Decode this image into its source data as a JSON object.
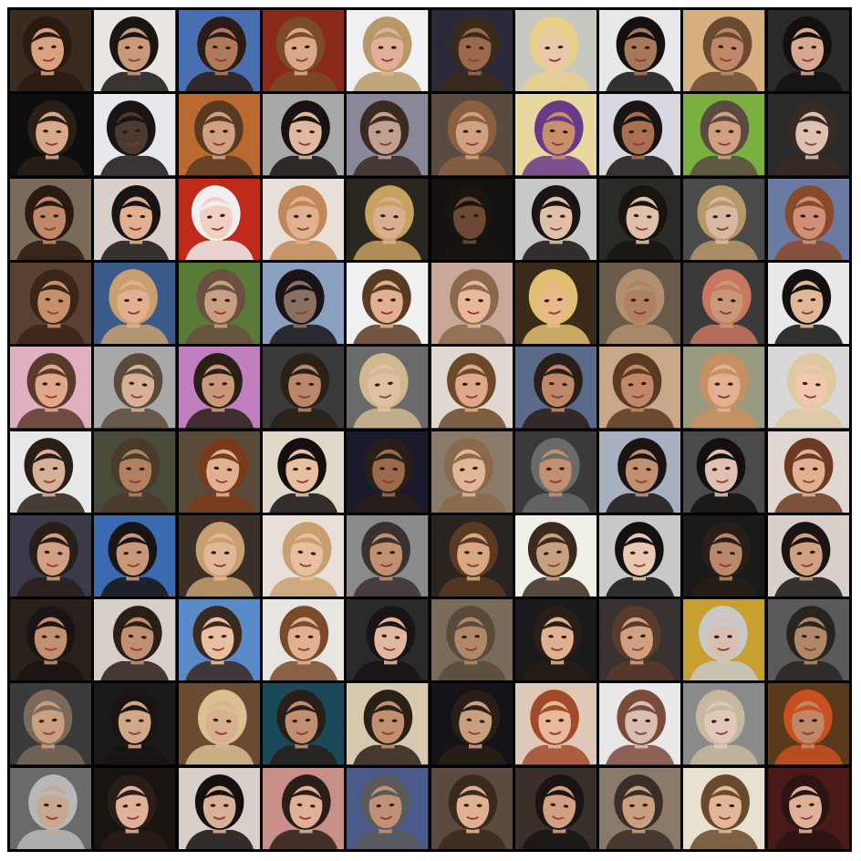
{
  "grid": {
    "rows": 10,
    "cols": 10,
    "frame_color": "#000000",
    "page_color": "#ffffff",
    "tiles": [
      {
        "bg": "#3a2a20",
        "skin": "#d9a27e",
        "hair": "#2a1a12"
      },
      {
        "bg": "#eae6e2",
        "skin": "#c99a7a",
        "hair": "#1a1412"
      },
      {
        "bg": "#4a6fb0",
        "skin": "#b07a5a",
        "hair": "#2a1c16"
      },
      {
        "bg": "#8a2a1a",
        "skin": "#d8a888",
        "hair": "#7a4a2a"
      },
      {
        "bg": "#f0f0f2",
        "skin": "#e0b098",
        "hair": "#b89868"
      },
      {
        "bg": "#2a2a3a",
        "skin": "#9a6a4a",
        "hair": "#3a2a1a"
      },
      {
        "bg": "#c8c8c0",
        "skin": "#e8c8a8",
        "hair": "#e8d088"
      },
      {
        "bg": "#e8e8ea",
        "skin": "#a8785a",
        "hair": "#141010"
      },
      {
        "bg": "#d8b080",
        "skin": "#c08868",
        "hair": "#6a4a30"
      },
      {
        "bg": "#2a2a2a",
        "skin": "#d8a890",
        "hair": "#141010"
      },
      {
        "bg": "#0e0e0e",
        "skin": "#d8a888",
        "hair": "#2a1e18"
      },
      {
        "bg": "#e8e8ec",
        "skin": "#4a3a30",
        "hair": "#1a1414"
      },
      {
        "bg": "#b86a30",
        "skin": "#d0a080",
        "hair": "#5a3a22"
      },
      {
        "bg": "#a8a8a8",
        "skin": "#e0b8a0",
        "hair": "#1a1212"
      },
      {
        "bg": "#8a8898",
        "skin": "#c0a090",
        "hair": "#3a2a22"
      },
      {
        "bg": "#5a4a40",
        "skin": "#d0a080",
        "hair": "#8a6040"
      },
      {
        "bg": "#e8d8a0",
        "skin": "#c89068",
        "hair": "#6a3a8a"
      },
      {
        "bg": "#d8d8e0",
        "skin": "#a87050",
        "hair": "#1a1414"
      },
      {
        "bg": "#7ab040",
        "skin": "#d0a080",
        "hair": "#5a4a40"
      },
      {
        "bg": "#2a2a2a",
        "skin": "#e0c0b0",
        "hair": "#3a2a26"
      },
      {
        "bg": "#7a6a5a",
        "skin": "#c08868",
        "hair": "#2a1a12"
      },
      {
        "bg": "#d8d0c8",
        "skin": "#e0b090",
        "hair": "#1a1414"
      },
      {
        "bg": "#c02a1a",
        "skin": "#f0d0c0",
        "hair": "#f0f0f0"
      },
      {
        "bg": "#e8e0d8",
        "skin": "#e0b090",
        "hair": "#c08858"
      },
      {
        "bg": "#2a2620",
        "skin": "#d8b090",
        "hair": "#c8a060"
      },
      {
        "bg": "#141210",
        "skin": "#6a4a34",
        "hair": "#1a1410"
      },
      {
        "bg": "#c8c8c8",
        "skin": "#e0c0a8",
        "hair": "#1a1414"
      },
      {
        "bg": "#2a2a26",
        "skin": "#e0c0a8",
        "hair": "#1a1410"
      },
      {
        "bg": "#4a4a4a",
        "skin": "#d8b8a0",
        "hair": "#b89868"
      },
      {
        "bg": "#6a7aa0",
        "skin": "#d09078",
        "hair": "#8a4a2a"
      },
      {
        "bg": "#5a4030",
        "skin": "#c89068",
        "hair": "#3a2618"
      },
      {
        "bg": "#3a5a8a",
        "skin": "#e0b090",
        "hair": "#c8a070"
      },
      {
        "bg": "#5a7a3a",
        "skin": "#c8a080",
        "hair": "#6a5040"
      },
      {
        "bg": "#8aa0c0",
        "skin": "#8a7060",
        "hair": "#1a1418"
      },
      {
        "bg": "#f0f0f0",
        "skin": "#e0b090",
        "hair": "#5a3a22"
      },
      {
        "bg": "#c8a898",
        "skin": "#e8b898",
        "hair": "#8a6a4a"
      },
      {
        "bg": "#3a2a1a",
        "skin": "#e8b888",
        "hair": "#e0c070"
      },
      {
        "bg": "#6a5a4a",
        "skin": "#b08060",
        "hair": "#b09070"
      },
      {
        "bg": "#3a3a3a",
        "skin": "#c89878",
        "hair": "#c87860"
      },
      {
        "bg": "#e8e8e8",
        "skin": "#e0b898",
        "hair": "#141010"
      },
      {
        "bg": "#e0b0c0",
        "skin": "#e0a888",
        "hair": "#5a3a2a"
      },
      {
        "bg": "#a8a8a8",
        "skin": "#d8b098",
        "hair": "#5a4a3a"
      },
      {
        "bg": "#c080c0",
        "skin": "#c89878",
        "hair": "#2a1e18"
      },
      {
        "bg": "#3a3a3a",
        "skin": "#b88868",
        "hair": "#2a2018"
      },
      {
        "bg": "#6a6a6a",
        "skin": "#e0c0a0",
        "hair": "#d0b890"
      },
      {
        "bg": "#e0d8d0",
        "skin": "#e0a888",
        "hair": "#6a4a2a"
      },
      {
        "bg": "#5a6a8a",
        "skin": "#c08868",
        "hair": "#2a1e18"
      },
      {
        "bg": "#c8a888",
        "skin": "#c08868",
        "hair": "#5a3a22"
      },
      {
        "bg": "#9a9a80",
        "skin": "#e0b090",
        "hair": "#c89060"
      },
      {
        "bg": "#d8d8d8",
        "skin": "#f0c8b0",
        "hair": "#e0c8a0"
      },
      {
        "bg": "#e8e8e8",
        "skin": "#d8b098",
        "hair": "#2a1e18"
      },
      {
        "bg": "#4a4a3a",
        "skin": "#b08060",
        "hair": "#4a3a2a"
      },
      {
        "bg": "#5a4a3a",
        "skin": "#e0b090",
        "hair": "#7a3a1a"
      },
      {
        "bg": "#e0d8c8",
        "skin": "#e8c0a0",
        "hair": "#141010"
      },
      {
        "bg": "#1a1a2a",
        "skin": "#9a6a4a",
        "hair": "#2a1e18"
      },
      {
        "bg": "#8a7a6a",
        "skin": "#e0b898",
        "hair": "#8a6a4a"
      },
      {
        "bg": "#3a3a3a",
        "skin": "#c09070",
        "hair": "#6a6a6a"
      },
      {
        "bg": "#a8b0c0",
        "skin": "#c09070",
        "hair": "#1a1414"
      },
      {
        "bg": "#4a4a4a",
        "skin": "#e0c0b0",
        "hair": "#141010"
      },
      {
        "bg": "#e0d8d0",
        "skin": "#e0b090",
        "hair": "#6a3a22"
      },
      {
        "bg": "#3a3a4a",
        "skin": "#d0a080",
        "hair": "#2a1e18"
      },
      {
        "bg": "#3a6ab0",
        "skin": "#c89878",
        "hair": "#1a1414"
      },
      {
        "bg": "#3a3028",
        "skin": "#e0b898",
        "hair": "#c8a070"
      },
      {
        "bg": "#e8e0d8",
        "skin": "#e8c0a0",
        "hair": "#c8a070"
      },
      {
        "bg": "#8a8a8a",
        "skin": "#c09070",
        "hair": "#3a3030"
      },
      {
        "bg": "#2a2420",
        "skin": "#d8a880",
        "hair": "#5a3a22"
      },
      {
        "bg": "#f0f0e8",
        "skin": "#c8a080",
        "hair": "#3a2a20"
      },
      {
        "bg": "#c8c8c8",
        "skin": "#e8c8b0",
        "hair": "#141010"
      },
      {
        "bg": "#1a1a1a",
        "skin": "#b88868",
        "hair": "#2a1e18"
      },
      {
        "bg": "#d8d0c8",
        "skin": "#d0a080",
        "hair": "#1a1414"
      },
      {
        "bg": "#2a201a",
        "skin": "#c09070",
        "hair": "#1a1414"
      },
      {
        "bg": "#d8d0c8",
        "skin": "#c09070",
        "hair": "#2a1e18"
      },
      {
        "bg": "#5a8ac8",
        "skin": "#e8c0a0",
        "hair": "#3a2a1e"
      },
      {
        "bg": "#e8e4e0",
        "skin": "#e0b090",
        "hair": "#7a4a2a"
      },
      {
        "bg": "#2a2a2a",
        "skin": "#e0b8a0",
        "hair": "#1a1414"
      },
      {
        "bg": "#7a6a5a",
        "skin": "#b08868",
        "hair": "#5a4a3a"
      },
      {
        "bg": "#1a1a1a",
        "skin": "#e0b090",
        "hair": "#2a1e18"
      },
      {
        "bg": "#3a3230",
        "skin": "#d0a080",
        "hair": "#5a3a2a"
      },
      {
        "bg": "#c8a030",
        "skin": "#d8c0b0",
        "hair": "#c8c8c8"
      },
      {
        "bg": "#5a5a5a",
        "skin": "#b08868",
        "hair": "#2a2420"
      },
      {
        "bg": "#3a3a3a",
        "skin": "#c8a080",
        "hair": "#7a6a5a"
      },
      {
        "bg": "#1a1a18",
        "skin": "#d0a888",
        "hair": "#1a1414"
      },
      {
        "bg": "#6a4a30",
        "skin": "#d8b090",
        "hair": "#d8c090"
      },
      {
        "bg": "#1a4a5a",
        "skin": "#c09070",
        "hair": "#2a1e18"
      },
      {
        "bg": "#d8c8b0",
        "skin": "#c09070",
        "hair": "#2a2018"
      },
      {
        "bg": "#141418",
        "skin": "#c8a080",
        "hair": "#2a1e18"
      },
      {
        "bg": "#e0c8b8",
        "skin": "#e8b898",
        "hair": "#a04a2a"
      },
      {
        "bg": "#e8e8e8",
        "skin": "#d8c0b0",
        "hair": "#7a4a3a"
      },
      {
        "bg": "#8a8a8a",
        "skin": "#e0c8b8",
        "hair": "#c8b8a0"
      },
      {
        "bg": "#5a3a1a",
        "skin": "#c08868",
        "hair": "#c85020"
      },
      {
        "bg": "#6a6a6a",
        "skin": "#c8a890",
        "hair": "#b8b8b8"
      },
      {
        "bg": "#1a1410",
        "skin": "#e0b098",
        "hair": "#2a1e18"
      },
      {
        "bg": "#d8d0c8",
        "skin": "#d8b098",
        "hair": "#141010"
      },
      {
        "bg": "#c89088",
        "skin": "#e0b098",
        "hair": "#2a1e18"
      },
      {
        "bg": "#4a5a8a",
        "skin": "#c09078",
        "hair": "#5a5a5a"
      },
      {
        "bg": "#5a4a40",
        "skin": "#e0b090",
        "hair": "#3a2a1e"
      },
      {
        "bg": "#3a2e28",
        "skin": "#d0a080",
        "hair": "#1a1414"
      },
      {
        "bg": "#8a7a6a",
        "skin": "#c8a080",
        "hair": "#3a2e28"
      },
      {
        "bg": "#e8e0d0",
        "skin": "#e0b898",
        "hair": "#6a4a2a"
      },
      {
        "bg": "#4a1a1a",
        "skin": "#e0b098",
        "hair": "#2a1414"
      }
    ]
  }
}
